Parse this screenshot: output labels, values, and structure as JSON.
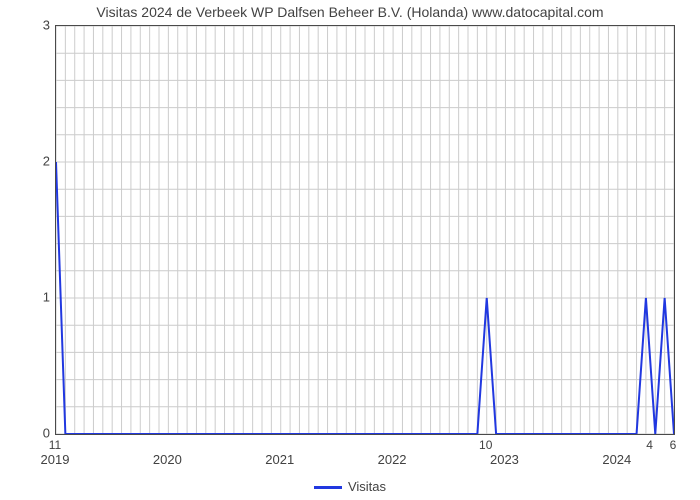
{
  "chart": {
    "type": "line",
    "title": "Visitas 2024 de Verbeek WP Dalfsen Beheer B.V. (Holanda) www.datocapital.com",
    "title_fontsize": 14,
    "title_color": "#424242",
    "background_color": "#ffffff",
    "plot_border_color": "#4a4a4a",
    "grid_color": "#cccccc",
    "line_color": "#2138e0",
    "line_width": 2,
    "xlim": [
      0,
      66
    ],
    "ylim": [
      0,
      3
    ],
    "yticks": [
      0,
      1,
      2,
      3
    ],
    "ytick_labels": [
      "0",
      "1",
      "2",
      "3"
    ],
    "xticks": [
      0,
      12,
      24,
      36,
      48,
      60
    ],
    "xtick_labels": [
      "2019",
      "2020",
      "2021",
      "2022",
      "2023",
      "2024"
    ],
    "minor_xgrid_step": 1,
    "minor_ygrid_count": 15,
    "xlabel_fontsize": 13,
    "ylabel_fontsize": 13,
    "label_color": "#424242",
    "data_points": [
      {
        "x": 0,
        "y": 2
      },
      {
        "x": 1,
        "y": 0
      },
      {
        "x": 45,
        "y": 0
      },
      {
        "x": 46,
        "y": 1
      },
      {
        "x": 47,
        "y": 0
      },
      {
        "x": 62,
        "y": 0
      },
      {
        "x": 63,
        "y": 1
      },
      {
        "x": 64,
        "y": 0
      },
      {
        "x": 65,
        "y": 1
      },
      {
        "x": 66,
        "y": 0
      }
    ],
    "data_annotations": [
      {
        "x": 0,
        "label": "11"
      },
      {
        "x": 46,
        "label": "10"
      },
      {
        "x": 63.5,
        "label": "4"
      },
      {
        "x": 66,
        "label": "6"
      }
    ],
    "legend": {
      "label": "Visitas",
      "color": "#2138e0"
    }
  }
}
